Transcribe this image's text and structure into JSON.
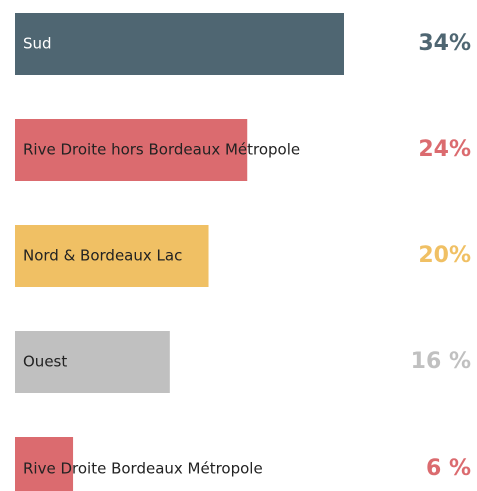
{
  "chart_data": {
    "type": "bar",
    "orientation": "horizontal",
    "categories": [
      "Sud",
      "Rive Droite hors Bordeaux Métropole",
      "Nord & Bordeaux Lac",
      "Ouest",
      "Rive Droite Bordeaux Métropole"
    ],
    "values": [
      34,
      24,
      20,
      16,
      6
    ],
    "value_labels": [
      "34%",
      "24%",
      "20%",
      "16 %",
      "6 %"
    ],
    "colors": [
      "#4f6672",
      "#db6b6f",
      "#f0c064",
      "#c0c0c0",
      "#db6b6f"
    ]
  }
}
